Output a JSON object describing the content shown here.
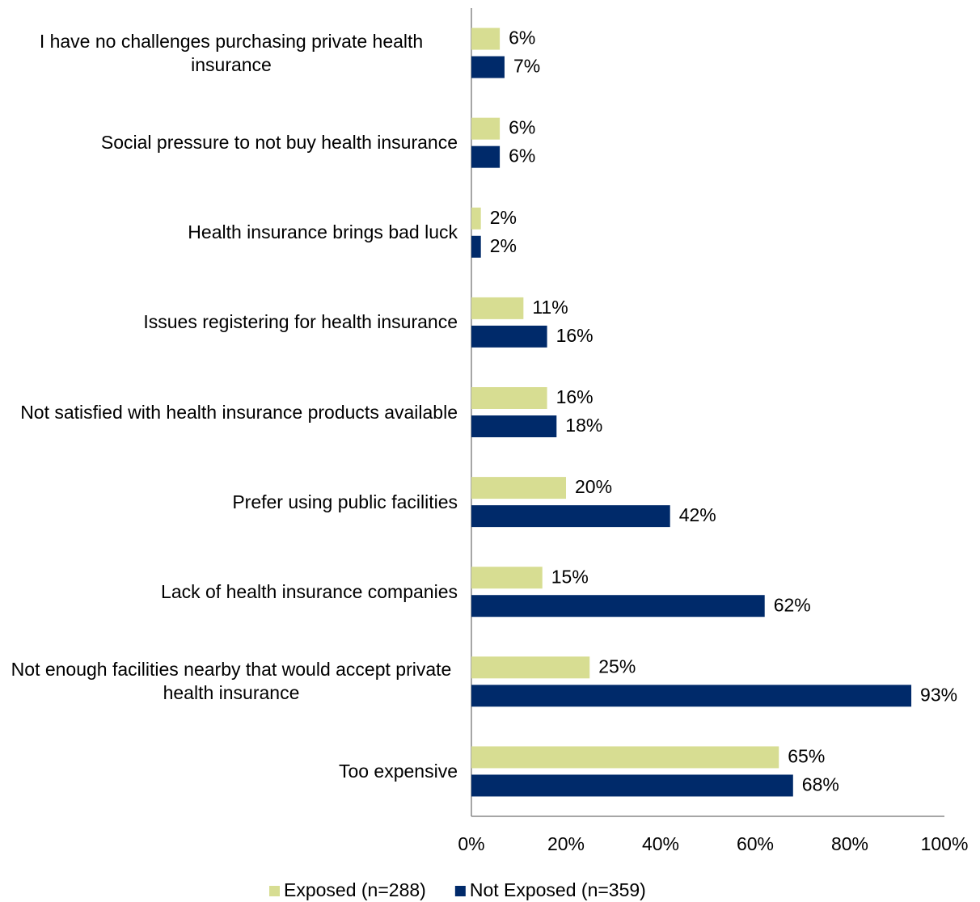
{
  "chart_data": {
    "type": "hbar",
    "categories": [
      "I have no challenges purchasing private health insurance",
      "Social pressure to not buy health insurance",
      "Health insurance brings bad luck",
      "Issues registering for health insurance",
      "Not satisfied with health insurance products available",
      "Prefer using public facilities",
      "Lack of health insurance companies",
      "Not enough facilities nearby that would accept private health insurance",
      "Too expensive"
    ],
    "series": [
      {
        "name": "Exposed (n=288)",
        "color": "#d7dd92",
        "values": [
          6,
          6,
          2,
          11,
          16,
          20,
          15,
          25,
          65
        ],
        "value_labels": [
          "6%",
          "6%",
          "2%",
          "11%",
          "16%",
          "20%",
          "15%",
          "25%",
          "65%"
        ]
      },
      {
        "name": "Not Exposed (n=359)",
        "color": "#002a6a",
        "values": [
          7,
          6,
          2,
          16,
          18,
          42,
          62,
          93,
          68
        ],
        "value_labels": [
          "7%",
          "6%",
          "2%",
          "16%",
          "18%",
          "42%",
          "62%",
          "93%",
          "68%"
        ]
      }
    ],
    "xlim": [
      0,
      100
    ],
    "xticks": [
      {
        "value": 0,
        "label": "0%"
      },
      {
        "value": 20,
        "label": "20%"
      },
      {
        "value": 40,
        "label": "40%"
      },
      {
        "value": 60,
        "label": "60%"
      },
      {
        "value": 80,
        "label": "80%"
      },
      {
        "value": 100,
        "label": "100%"
      }
    ],
    "grid": false,
    "legend": "bottom"
  }
}
